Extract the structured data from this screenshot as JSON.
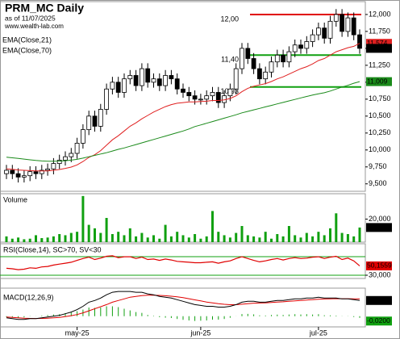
{
  "chart_data": [
    {
      "type": "candlestick",
      "title": "PRM_MC Daily",
      "subtitle": "as of 11/07/2025",
      "source": "www.wealth-lab.com",
      "categories": [
        null,
        null,
        null,
        null,
        null,
        null,
        null,
        null,
        null,
        null,
        null,
        null,
        "may-25",
        null,
        null,
        null,
        null,
        null,
        null,
        null,
        null,
        null,
        null,
        null,
        null,
        null,
        null,
        null,
        null,
        null,
        null,
        null,
        null,
        "jun-25",
        null,
        null,
        null,
        null,
        null,
        null,
        null,
        null,
        null,
        null,
        null,
        null,
        null,
        null,
        null,
        null,
        null,
        null,
        null,
        "jul-25",
        null,
        null,
        null,
        null,
        null,
        null,
        null
      ],
      "open": [
        9650,
        9700,
        9650,
        9600,
        9620,
        9680,
        9650,
        9700,
        9720,
        9800,
        9850,
        9900,
        9950,
        10100,
        10300,
        10500,
        10350,
        10600,
        10900,
        11000,
        10850,
        11050,
        11100,
        10950,
        11200,
        11000,
        11050,
        10950,
        11100,
        11050,
        10900,
        10850,
        10800,
        10750,
        10750,
        10800,
        10850,
        10700,
        10800,
        10900,
        11200,
        11500,
        11350,
        11200,
        11050,
        11150,
        11300,
        11400,
        11300,
        11450,
        11550,
        11500,
        11600,
        11700,
        11800,
        11650,
        11900,
        12000,
        11750,
        11950,
        11700
      ],
      "high": [
        9780,
        9780,
        9730,
        9700,
        9760,
        9760,
        9780,
        9800,
        9880,
        9930,
        9980,
        10030,
        10180,
        10380,
        10580,
        10580,
        10680,
        10980,
        11080,
        11080,
        11130,
        11180,
        11180,
        11280,
        11280,
        11130,
        11130,
        11180,
        11180,
        11130,
        10980,
        10930,
        10880,
        10830,
        10880,
        10930,
        10930,
        10880,
        10980,
        11280,
        11580,
        11580,
        11430,
        11280,
        11230,
        11380,
        11480,
        11480,
        11530,
        11630,
        11630,
        11680,
        11780,
        11880,
        11880,
        11980,
        12080,
        12080,
        12030,
        12030,
        11780
      ],
      "low": [
        9570,
        9570,
        9520,
        9520,
        9540,
        9570,
        9570,
        9620,
        9640,
        9720,
        9770,
        9820,
        9870,
        10020,
        10220,
        10270,
        10270,
        10520,
        10820,
        10770,
        10770,
        10970,
        10870,
        10870,
        10920,
        10920,
        10870,
        10870,
        10970,
        10820,
        10770,
        10720,
        10670,
        10670,
        10670,
        10720,
        10620,
        10620,
        10720,
        10820,
        11120,
        11270,
        11120,
        10970,
        10970,
        11070,
        11220,
        11220,
        11220,
        11370,
        11420,
        11420,
        11520,
        11620,
        11570,
        11570,
        11820,
        11670,
        11670,
        11620,
        11420
      ],
      "close": [
        9700,
        9650,
        9600,
        9620,
        9680,
        9650,
        9700,
        9720,
        9800,
        9850,
        9900,
        9950,
        10100,
        10300,
        10500,
        10350,
        10600,
        10900,
        11000,
        10850,
        11050,
        11100,
        10950,
        11200,
        11000,
        11050,
        10950,
        11100,
        11050,
        10900,
        10850,
        10800,
        10750,
        10750,
        10800,
        10850,
        10700,
        10800,
        10900,
        11200,
        11500,
        11350,
        11200,
        11050,
        11150,
        11300,
        11400,
        11300,
        11450,
        11550,
        11500,
        11600,
        11700,
        11800,
        11650,
        11900,
        12000,
        11750,
        11950,
        11700,
        11500
      ],
      "close_label": "11,500",
      "series": [
        {
          "name": "EMA(Close,21)",
          "color": "#e02020",
          "last_label": "11,574",
          "values": [
            9720,
            9715,
            9705,
            9700,
            9695,
            9690,
            9690,
            9692,
            9700,
            9712,
            9728,
            9748,
            9780,
            9830,
            9890,
            9930,
            9990,
            10070,
            10150,
            10210,
            10280,
            10350,
            10400,
            10460,
            10510,
            10560,
            10600,
            10640,
            10670,
            10690,
            10700,
            10710,
            10710,
            10715,
            10720,
            10730,
            10730,
            10740,
            10760,
            10800,
            10860,
            10910,
            10940,
            10960,
            10980,
            11010,
            11050,
            11080,
            11120,
            11160,
            11200,
            11230,
            11270,
            11320,
            11350,
            11400,
            11450,
            11480,
            11510,
            11530,
            11574
          ]
        },
        {
          "name": "EMA(Close,70)",
          "color": "#1a8a1a",
          "last_label": "11,009",
          "values": [
            9893,
            9885,
            9875,
            9865,
            9855,
            9845,
            9838,
            9834,
            9833,
            9836,
            9842,
            9850,
            9862,
            9880,
            9900,
            9920,
            9940,
            9960,
            9985,
            10010,
            10030,
            10055,
            10080,
            10105,
            10130,
            10155,
            10180,
            10205,
            10230,
            10255,
            10280,
            10310,
            10345,
            10370,
            10395,
            10420,
            10445,
            10470,
            10495,
            10520,
            10548,
            10570,
            10592,
            10614,
            10636,
            10658,
            10680,
            10702,
            10724,
            10746,
            10768,
            10790,
            10810,
            10828,
            10845,
            10870,
            10900,
            10930,
            10955,
            10985,
            11009
          ]
        }
      ],
      "levels": [
        {
          "value": 12000,
          "label": "12,00",
          "color": "#e00000"
        },
        {
          "value": 11400,
          "label": "11,40",
          "color": "#10a010"
        },
        {
          "value": 10930,
          "label": "10,93",
          "color": "#10a010"
        }
      ],
      "ylim": [
        9390,
        12190
      ],
      "yticks": [
        {
          "value": 12000,
          "label": "12,000"
        },
        {
          "value": 11750,
          "label": "11,750"
        },
        {
          "value": 11500,
          "label": "11,500"
        },
        {
          "value": 11250,
          "label": "11,250"
        },
        {
          "value": 11000,
          "label": "11,000"
        },
        {
          "value": 10750,
          "label": "10,750"
        },
        {
          "value": 10500,
          "label": "10,500"
        },
        {
          "value": 10250,
          "label": "10,250"
        },
        {
          "value": 10000,
          "label": "10,000"
        },
        {
          "value": 9750,
          "label": "9,750"
        },
        {
          "value": 9500,
          "label": "9,500"
        }
      ]
    },
    {
      "type": "bar",
      "title": "Volume",
      "color": "#10a010",
      "last_label": "12,691",
      "values": [
        5000,
        3000,
        4000,
        2500,
        3000,
        6000,
        3500,
        4000,
        5000,
        7000,
        6000,
        8000,
        9000,
        40000,
        15000,
        12000,
        8000,
        21000,
        7000,
        9000,
        6000,
        12000,
        5000,
        8000,
        4000,
        6000,
        3000,
        15000,
        5000,
        9000,
        6000,
        4000,
        7000,
        3000,
        5000,
        27000,
        9000,
        6000,
        4000,
        8000,
        14000,
        6000,
        5000,
        4000,
        9000,
        3000,
        7000,
        5000,
        14000,
        6000,
        4000,
        8000,
        5000,
        9000,
        6000,
        12000,
        25000,
        8000,
        7000,
        5000,
        12691
      ],
      "ylim": [
        0,
        42000
      ],
      "yticks": [
        {
          "value": 20000,
          "label": "20,000"
        }
      ]
    },
    {
      "type": "line",
      "title": "RSI(Close,14), SC>70, SV<30",
      "color": "#e00000",
      "last_label": "50,1559",
      "values": [
        45,
        44,
        42,
        43,
        46,
        45,
        48,
        49,
        52,
        54,
        56,
        58,
        62,
        66,
        69,
        64,
        67,
        71,
        72,
        68,
        70,
        70,
        66,
        69,
        64,
        65,
        62,
        65,
        63,
        60,
        59,
        58,
        57,
        57,
        58,
        59,
        56,
        59,
        61,
        66,
        70,
        66,
        62,
        59,
        61,
        64,
        66,
        63,
        66,
        68,
        66,
        67,
        69,
        70,
        66,
        69,
        71,
        64,
        67,
        61,
        50.1559
      ],
      "levels": [
        70,
        30
      ],
      "level_color": "#10a010",
      "ylim": [
        23,
        98
      ],
      "yticks": [
        {
          "value": 30,
          "label": "30,000"
        }
      ]
    },
    {
      "type": "macd",
      "title": "MACD(12,26,9)",
      "ylim": [
        -0.13,
        0.34
      ],
      "macd": {
        "color": "#000000",
        "last_label": "0,1903",
        "values": [
          -0.02,
          -0.03,
          -0.04,
          -0.04,
          -0.03,
          -0.03,
          -0.02,
          -0.01,
          0.0,
          0.01,
          0.03,
          0.05,
          0.08,
          0.12,
          0.17,
          0.19,
          0.22,
          0.26,
          0.29,
          0.3,
          0.3,
          0.3,
          0.29,
          0.29,
          0.27,
          0.26,
          0.24,
          0.23,
          0.22,
          0.2,
          0.18,
          0.16,
          0.14,
          0.13,
          0.12,
          0.12,
          0.11,
          0.11,
          0.12,
          0.14,
          0.17,
          0.18,
          0.18,
          0.17,
          0.17,
          0.18,
          0.19,
          0.19,
          0.2,
          0.21,
          0.21,
          0.22,
          0.22,
          0.23,
          0.22,
          0.22,
          0.22,
          0.21,
          0.21,
          0.2,
          0.1903
        ]
      },
      "signal": {
        "color": "#e00000",
        "values": [
          -0.01,
          -0.015,
          -0.02,
          -0.025,
          -0.027,
          -0.028,
          -0.027,
          -0.024,
          -0.02,
          -0.014,
          -0.005,
          0.006,
          0.02,
          0.04,
          0.065,
          0.09,
          0.115,
          0.14,
          0.17,
          0.19,
          0.21,
          0.23,
          0.24,
          0.25,
          0.255,
          0.255,
          0.252,
          0.248,
          0.242,
          0.234,
          0.224,
          0.212,
          0.198,
          0.185,
          0.172,
          0.162,
          0.152,
          0.144,
          0.139,
          0.139,
          0.145,
          0.152,
          0.158,
          0.16,
          0.162,
          0.166,
          0.171,
          0.175,
          0.18,
          0.186,
          0.19,
          0.196,
          0.2,
          0.206,
          0.209,
          0.211,
          0.213,
          0.212,
          0.212,
          0.21,
          0.2103
        ]
      },
      "histogram": {
        "color": "#10a010",
        "last_label": "-0,0200",
        "values": [
          -0.01,
          -0.015,
          -0.02,
          -0.015,
          -0.003,
          -0.002,
          0.007,
          0.014,
          0.02,
          0.024,
          0.035,
          0.044,
          0.06,
          0.08,
          0.105,
          0.1,
          0.105,
          0.12,
          0.12,
          0.11,
          0.09,
          0.07,
          0.05,
          0.04,
          0.015,
          0.005,
          -0.012,
          -0.018,
          -0.022,
          -0.034,
          -0.044,
          -0.052,
          -0.058,
          -0.055,
          -0.052,
          -0.042,
          -0.042,
          -0.034,
          -0.019,
          0.001,
          0.025,
          0.028,
          0.022,
          0.01,
          0.008,
          0.014,
          0.019,
          0.015,
          0.02,
          0.024,
          0.02,
          0.024,
          0.02,
          0.024,
          0.011,
          0.009,
          0.007,
          -0.002,
          -0.002,
          -0.01,
          -0.02
        ]
      }
    }
  ]
}
